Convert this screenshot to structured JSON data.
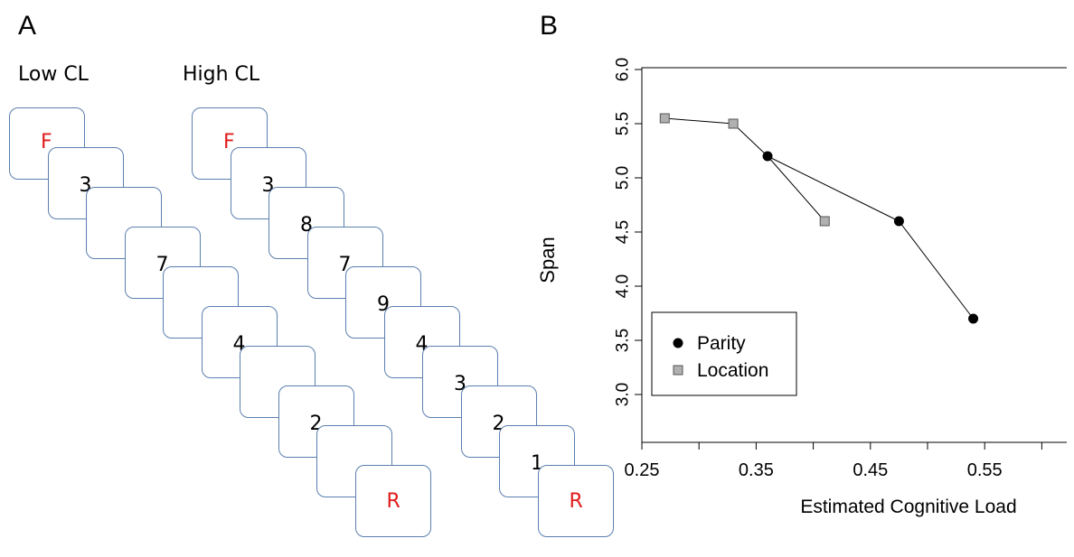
{
  "panel_a": {
    "letter": "A",
    "low": {
      "label": "Low CL",
      "cards": [
        "F",
        "3",
        "",
        "7",
        "",
        "4",
        "",
        "2",
        "",
        "R"
      ]
    },
    "high": {
      "label": "High CL",
      "cards": [
        "F",
        "3",
        "8",
        "7",
        "9",
        "4",
        "3",
        "2",
        "1",
        "R"
      ]
    },
    "colors": {
      "card_border": "#5b7fae",
      "cue_letter": "#e01b1b"
    }
  },
  "panel_b": {
    "letter": "B"
  },
  "chart_data": {
    "type": "scatter",
    "xlabel": "Estimated Cognitive Load",
    "ylabel": "Span",
    "xlim": [
      0.25,
      0.6
    ],
    "ylim": [
      3.0,
      6.0
    ],
    "x_ticks": [
      "0.25",
      "0.35",
      "0.45",
      "0.55"
    ],
    "y_ticks": [
      "3.0",
      "3.5",
      "4.0",
      "4.5",
      "5.0",
      "5.5",
      "6.0"
    ],
    "legend_position": "bottom-left",
    "grid": false,
    "series": [
      {
        "name": "Parity",
        "marker": "circle",
        "color": "#000000",
        "points": [
          [
            0.36,
            5.2
          ],
          [
            0.475,
            4.6
          ],
          [
            0.54,
            3.7
          ]
        ]
      },
      {
        "name": "Location",
        "marker": "square",
        "color": "#b0b0b0",
        "points": [
          [
            0.27,
            5.55
          ],
          [
            0.33,
            5.5
          ],
          [
            0.41,
            4.6
          ]
        ]
      }
    ]
  }
}
